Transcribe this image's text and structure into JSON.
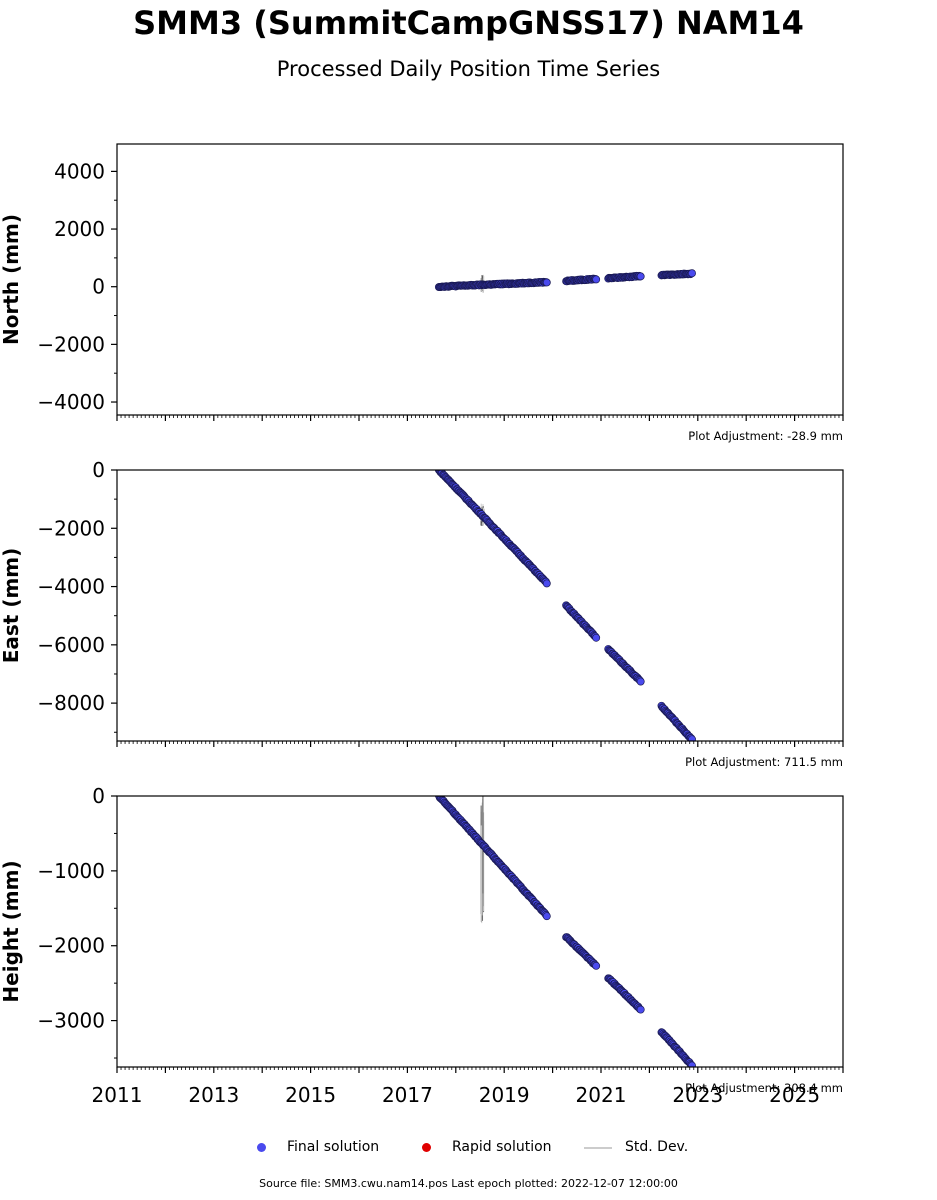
{
  "title": "SMM3 (SummitCampGNSS17) NAM14",
  "subtitle": "Processed Daily Position Time Series",
  "chart_data": {
    "type": "scatter",
    "x_axis": {
      "ticks": [
        2011,
        2013,
        2015,
        2017,
        2019,
        2021,
        2023,
        2025
      ],
      "xlim": [
        2011.0,
        2026.0
      ]
    },
    "panels": [
      {
        "ylabel": "North (mm)",
        "ylim": [
          -4450,
          4950
        ],
        "yticks": [
          -4000,
          -2000,
          0,
          2000,
          4000
        ],
        "adjustment": "Plot Adjustment: -28.9 mm",
        "segments": [
          {
            "t0": 2017.65,
            "t1": 2019.88,
            "y0": 0,
            "y1": 160
          },
          {
            "t0": 2020.28,
            "t1": 2020.9,
            "y0": 200,
            "y1": 270
          },
          {
            "t0": 2021.15,
            "t1": 2021.82,
            "y0": 290,
            "y1": 370
          },
          {
            "t0": 2022.25,
            "t1": 2022.88,
            "y0": 400,
            "y1": 450
          }
        ],
        "std_spikes": [
          {
            "t": 2018.55,
            "low": -210,
            "high": 420
          }
        ]
      },
      {
        "ylabel": "East (mm)",
        "ylim": [
          -9300,
          0
        ],
        "yticks": [
          -8000,
          -6000,
          -4000,
          -2000,
          0
        ],
        "adjustment": "Plot Adjustment: 711.5 mm",
        "segments": [
          {
            "t0": 2017.65,
            "t1": 2019.88,
            "y0": 0,
            "y1": -3880
          },
          {
            "t0": 2020.28,
            "t1": 2020.9,
            "y0": -4650,
            "y1": -5750
          },
          {
            "t0": 2021.15,
            "t1": 2021.82,
            "y0": -6150,
            "y1": -7250
          },
          {
            "t0": 2022.25,
            "t1": 2022.88,
            "y0": -8100,
            "y1": -9250
          }
        ],
        "std_spikes": [
          {
            "t": 2018.55,
            "low": -1950,
            "high": -1150
          }
        ]
      },
      {
        "ylabel": "Height (mm)",
        "ylim": [
          -3620,
          0
        ],
        "yticks": [
          -3000,
          -2000,
          -1000,
          0
        ],
        "adjustment": "Plot Adjustment: 308.4 mm",
        "segments": [
          {
            "t0": 2017.65,
            "t1": 2019.88,
            "y0": 0,
            "y1": -1600
          },
          {
            "t0": 2020.28,
            "t1": 2020.9,
            "y0": -1880,
            "y1": -2270
          },
          {
            "t0": 2021.15,
            "t1": 2021.82,
            "y0": -2430,
            "y1": -2850
          },
          {
            "t0": 2022.25,
            "t1": 2022.88,
            "y0": -3150,
            "y1": -3600
          }
        ],
        "std_spikes": [
          {
            "t": 2018.55,
            "low": -1720,
            "high": 0
          }
        ]
      }
    ],
    "legend": [
      "Final solution",
      "Rapid solution",
      "Std. Dev."
    ],
    "colors": {
      "final": "#4a4aee",
      "final_edge": "#1a1a55",
      "rapid": "#e00000",
      "stddev": "#cccccc",
      "spike": "#555555"
    }
  },
  "footer": "Source file: SMM3.cwu.nam14.pos  Last epoch plotted: 2022-12-07 12:00:00"
}
